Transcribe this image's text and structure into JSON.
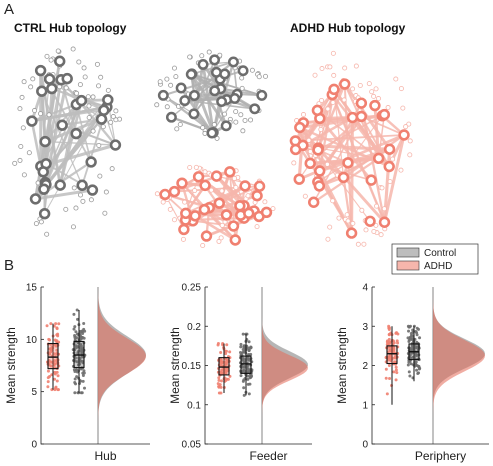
{
  "figure": {
    "panel_a_letter": "A",
    "panel_b_letter": "B",
    "ctrl_title": "CTRL Hub topology",
    "adhd_title": "ADHD Hub topology"
  },
  "colors": {
    "control": "#6d6d6d",
    "control_light": "#bdbdbd",
    "adhd": "#f08070",
    "adhd_light": "#f6b6ac",
    "adhd_dark": "#e36a58"
  },
  "chart_data": [
    {
      "type": "raincloud",
      "xlabel": "Hub",
      "ylabel": "Mean strength",
      "ylim": [
        0,
        15
      ],
      "yticks": [
        "0",
        "5",
        "10",
        "15"
      ],
      "legend": {
        "entries": [
          "Control",
          "ADHD"
        ],
        "placement": "top-right"
      },
      "series": [
        {
          "name": "ADHD",
          "median": 8.3,
          "q1": 7.2,
          "q3": 9.6,
          "whisker_low": 5.2,
          "whisker_high": 11.5,
          "density_peak": 8.4,
          "density_sd": 1.7
        },
        {
          "name": "Control",
          "median": 8.5,
          "q1": 7.3,
          "q3": 9.8,
          "whisker_low": 4.9,
          "whisker_high": 12.8,
          "density_peak": 8.5,
          "density_sd": 1.8
        }
      ]
    },
    {
      "type": "raincloud",
      "xlabel": "Feeder",
      "ylabel": "Mean strength",
      "ylim": [
        0.05,
        0.25
      ],
      "yticks": [
        "0.05",
        "0.1",
        "0.15",
        "0.2",
        "0.25"
      ],
      "series": [
        {
          "name": "ADHD",
          "median": 0.148,
          "q1": 0.138,
          "q3": 0.16,
          "whisker_low": 0.115,
          "whisker_high": 0.178,
          "density_peak": 0.147,
          "density_sd": 0.016
        },
        {
          "name": "Control",
          "median": 0.152,
          "q1": 0.14,
          "q3": 0.162,
          "whisker_low": 0.112,
          "whisker_high": 0.19,
          "density_peak": 0.151,
          "density_sd": 0.017
        }
      ]
    },
    {
      "type": "raincloud",
      "xlabel": "Periphery",
      "ylabel": "Mean strength",
      "ylim": [
        0,
        4
      ],
      "yticks": [
        "0",
        "1",
        "2",
        "3",
        "4"
      ],
      "series": [
        {
          "name": "ADHD",
          "median": 2.3,
          "q1": 2.05,
          "q3": 2.5,
          "whisker_low": 1.0,
          "whisker_high": 3.0,
          "density_peak": 2.25,
          "density_sd": 0.4
        },
        {
          "name": "Control",
          "median": 2.35,
          "q1": 2.15,
          "q3": 2.55,
          "whisker_low": 1.6,
          "whisker_high": 3.0,
          "density_peak": 2.3,
          "density_sd": 0.38
        }
      ]
    }
  ]
}
